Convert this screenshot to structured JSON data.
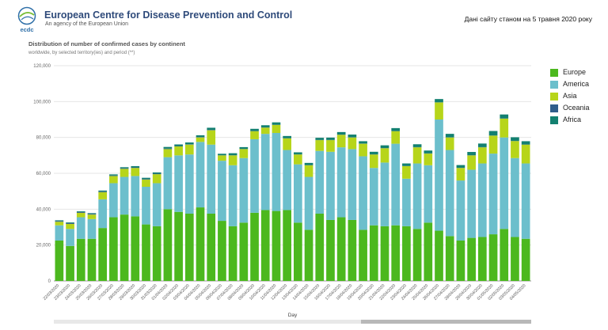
{
  "header": {
    "org_name": "European Centre for Disease Prevention and Control",
    "org_subtitle": "An agency of the European Union",
    "logo_text": "ecdc",
    "date_note": "Дані сайту станом на 5 травня 2020 року"
  },
  "chart": {
    "title": "Distribution of number of confirmed cases by continent",
    "subtitle": "worldwide, by selected territory(ies) and period (**)"
  },
  "colors": {
    "Europe": "#4cb81e",
    "America": "#6cbfcc",
    "Asia": "#b7d51a",
    "Oceania": "#2f5d8a",
    "Africa": "#138070"
  },
  "chart_data": {
    "type": "bar",
    "stacked": true,
    "xlabel": "Day",
    "ylabel": "",
    "ylim": [
      0,
      120000
    ],
    "yticks": [
      0,
      20000,
      40000,
      60000,
      80000,
      100000,
      120000
    ],
    "ytick_labels": [
      "0",
      "20,000",
      "40,000",
      "60,000",
      "80,000",
      "100,000",
      "120,000"
    ],
    "grid": true,
    "legend_position": "right",
    "categories": [
      "22/03/2020",
      "23/03/2020",
      "24/03/2020",
      "25/03/2020",
      "26/03/2020",
      "27/03/2020",
      "28/03/2020",
      "29/03/2020",
      "30/03/2020",
      "31/03/2020",
      "01/04/2020",
      "02/04/2020",
      "03/04/2020",
      "04/04/2020",
      "05/04/2020",
      "06/04/2020",
      "07/04/2020",
      "08/04/2020",
      "09/04/2020",
      "10/04/2020",
      "11/04/2020",
      "12/04/2020",
      "13/04/2020",
      "14/04/2020",
      "15/04/2020",
      "16/04/2020",
      "17/04/2020",
      "18/04/2020",
      "19/04/2020",
      "20/04/2020",
      "21/04/2020",
      "22/04/2020",
      "23/04/2020",
      "24/04/2020",
      "25/04/2020",
      "26/04/2020",
      "27/04/2020",
      "28/04/2020",
      "29/04/2020",
      "30/04/2020",
      "01/05/2020",
      "02/05/2020",
      "03/05/2020",
      "04/05/2020"
    ],
    "series": [
      {
        "name": "Europe",
        "values": [
          22500,
          19500,
          23500,
          23500,
          29500,
          35500,
          37000,
          36000,
          31500,
          30500,
          40000,
          38500,
          37500,
          41000,
          37500,
          33500,
          30500,
          32500,
          38000,
          39500,
          39000,
          39500,
          32500,
          28500,
          37500,
          34000,
          35500,
          34000,
          28500,
          31000,
          30500,
          31000,
          30500,
          29000,
          32500,
          28000,
          25000,
          22500,
          24000,
          24500,
          26000,
          29000,
          24500,
          23500
        ]
      },
      {
        "name": "America",
        "values": [
          8500,
          9500,
          12000,
          11000,
          16000,
          19000,
          21000,
          22500,
          21000,
          24000,
          29000,
          31500,
          33000,
          36500,
          38500,
          33500,
          34000,
          36000,
          41000,
          42500,
          43500,
          33500,
          32500,
          29500,
          35000,
          38000,
          39000,
          39500,
          41000,
          32000,
          35500,
          45500,
          26500,
          36500,
          32000,
          62000,
          48000,
          33500,
          38000,
          41000,
          45000,
          51000,
          44000,
          42000
        ]
      },
      {
        "name": "Asia",
        "values": [
          2000,
          2800,
          2500,
          2500,
          4000,
          4000,
          4500,
          4500,
          4000,
          5000,
          4500,
          5000,
          5500,
          2500,
          8000,
          3000,
          5500,
          5000,
          4500,
          3500,
          4500,
          6500,
          5500,
          6500,
          6000,
          6500,
          7000,
          6500,
          7000,
          7500,
          8000,
          7000,
          7000,
          9000,
          6500,
          9500,
          7000,
          7000,
          8000,
          9000,
          10000,
          10500,
          9500,
          10500
        ]
      },
      {
        "name": "Oceania",
        "values": [
          400,
          400,
          400,
          400,
          400,
          300,
          300,
          300,
          300,
          300,
          300,
          200,
          200,
          200,
          200,
          100,
          100,
          100,
          100,
          100,
          100,
          100,
          100,
          100,
          100,
          100,
          100,
          100,
          100,
          100,
          100,
          100,
          100,
          100,
          100,
          100,
          100,
          100,
          100,
          100,
          100,
          100,
          100,
          100
        ]
      },
      {
        "name": "Africa",
        "values": [
          400,
          400,
          400,
          400,
          500,
          600,
          600,
          700,
          700,
          700,
          900,
          900,
          1000,
          1000,
          1200,
          800,
          1100,
          1000,
          1200,
          1200,
          1300,
          1200,
          1100,
          1200,
          1200,
          1300,
          1400,
          1500,
          1300,
          1400,
          1500,
          1600,
          1400,
          1600,
          1600,
          1800,
          1900,
          1500,
          1800,
          2000,
          2500,
          2200,
          2000,
          1800
        ]
      }
    ]
  }
}
